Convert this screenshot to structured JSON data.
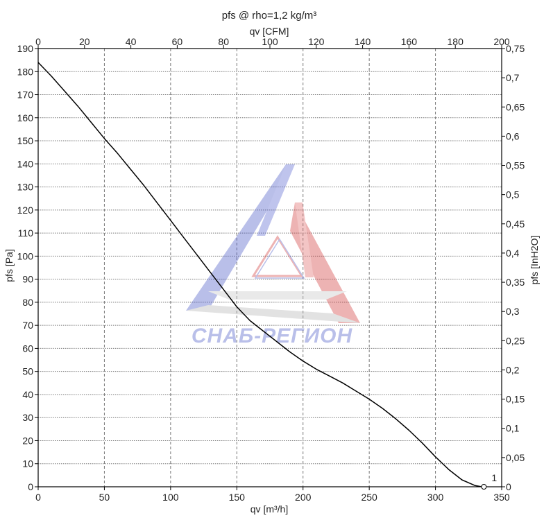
{
  "chart_data": {
    "type": "line",
    "title": "pfs @ rho=1,2 kg/m³",
    "xlabel": "qv [m³/h]",
    "x2label": "qv [CFM]",
    "ylabel": "pfs [Pa]",
    "y2label": "pfs [InH2O]",
    "xlim": [
      0,
      350
    ],
    "ylim": [
      0,
      190
    ],
    "x2lim": [
      0,
      200
    ],
    "y2lim": [
      0,
      0.75
    ],
    "x_ticks": [
      "0",
      "50",
      "100",
      "150",
      "200",
      "250",
      "300",
      "350"
    ],
    "y_ticks": [
      "0",
      "10",
      "20",
      "30",
      "40",
      "50",
      "60",
      "70",
      "80",
      "90",
      "100",
      "110",
      "120",
      "130",
      "140",
      "150",
      "160",
      "170",
      "180",
      "190"
    ],
    "x2_ticks": [
      "0",
      "20",
      "40",
      "60",
      "80",
      "100",
      "120",
      "140",
      "160",
      "180",
      "200"
    ],
    "y2_ticks": [
      "0",
      "0,05",
      "0,1",
      "0,15",
      "0,2",
      "0,25",
      "0,3",
      "0,35",
      "0,4",
      "0,45",
      "0,5",
      "0,55",
      "0,6",
      "0,65",
      "0,7",
      "0,75"
    ],
    "grid": true,
    "series": [
      {
        "x": [
          0,
          10,
          20,
          30,
          40,
          50,
          60,
          70,
          80,
          90,
          100,
          110,
          120,
          130,
          140,
          150,
          160,
          170,
          180,
          190,
          200,
          210,
          220,
          230,
          240,
          250,
          260,
          270,
          280,
          290,
          300,
          310,
          320,
          330,
          335
        ],
        "y": [
          184,
          178,
          171.5,
          165,
          158,
          151,
          144.5,
          137.5,
          130.5,
          123,
          115.5,
          108,
          100.5,
          93,
          85.5,
          78,
          72,
          67.5,
          63,
          58.5,
          54.5,
          51,
          48,
          45,
          41.5,
          38,
          34,
          29.5,
          24.5,
          19,
          13,
          7.5,
          3,
          0.5,
          0
        ]
      }
    ],
    "point_label": "1"
  },
  "watermark": {
    "text": "СНАБ-РЕГИОН",
    "colors": {
      "blue": "#4a58c8",
      "red": "#d23a3a",
      "gray": "#b4b4b4"
    }
  },
  "colors": {
    "line": "#000000",
    "grid": "#777777",
    "frame": "#000000"
  }
}
